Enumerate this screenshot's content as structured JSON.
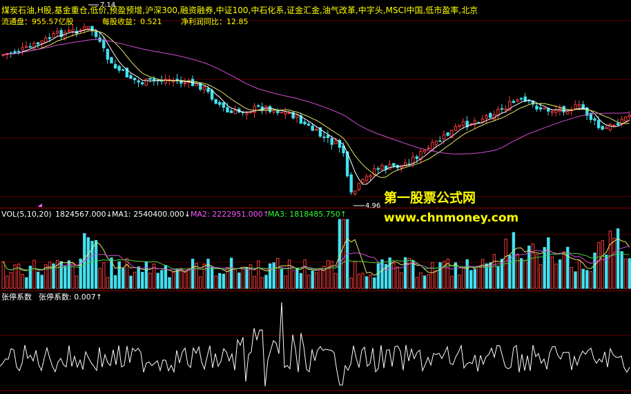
{
  "header": {
    "tags": "煤炭石油,H股,基金重仓,低价,预盈预增,沪深300,融资融券,中证100,中石化系,证金汇金,油气改革,中字头,MSCI中国,低市盈率,北京",
    "float_label": "流通盘：955.57亿股",
    "eps_label": "每股收益：0.521",
    "profit_label": "净利润同比：12.85"
  },
  "price_panel": {
    "high_label": "7.14",
    "low_label": "4.96"
  },
  "volume_panel": {
    "title": "VOL(5,10,20)",
    "vol_value": "1824567.000↓",
    "ma1": "MA1: 2540400.000↓",
    "ma2": "MA2: 2222951.000↑",
    "ma3": "MA3: 1818485.750↑"
  },
  "indicator_panel": {
    "title": "张停系数",
    "value": "张停系数: 0.007↑"
  },
  "watermark": {
    "line1": "第一股票公式网",
    "line2": "www.chnmoney.com"
  },
  "colors": {
    "up": "#ff3b3b",
    "down": "#44e0f0",
    "ma_white": "#ffffff",
    "ma_yellow": "#e8e86a",
    "ma_magenta": "#d24fd2",
    "ma_green": "#44d044",
    "label_yellow": "#ffff00",
    "label_magenta": "#ff55ff",
    "label_green": "#33ff33",
    "label_white": "#ffffff",
    "separator": "#8b0000"
  }
}
